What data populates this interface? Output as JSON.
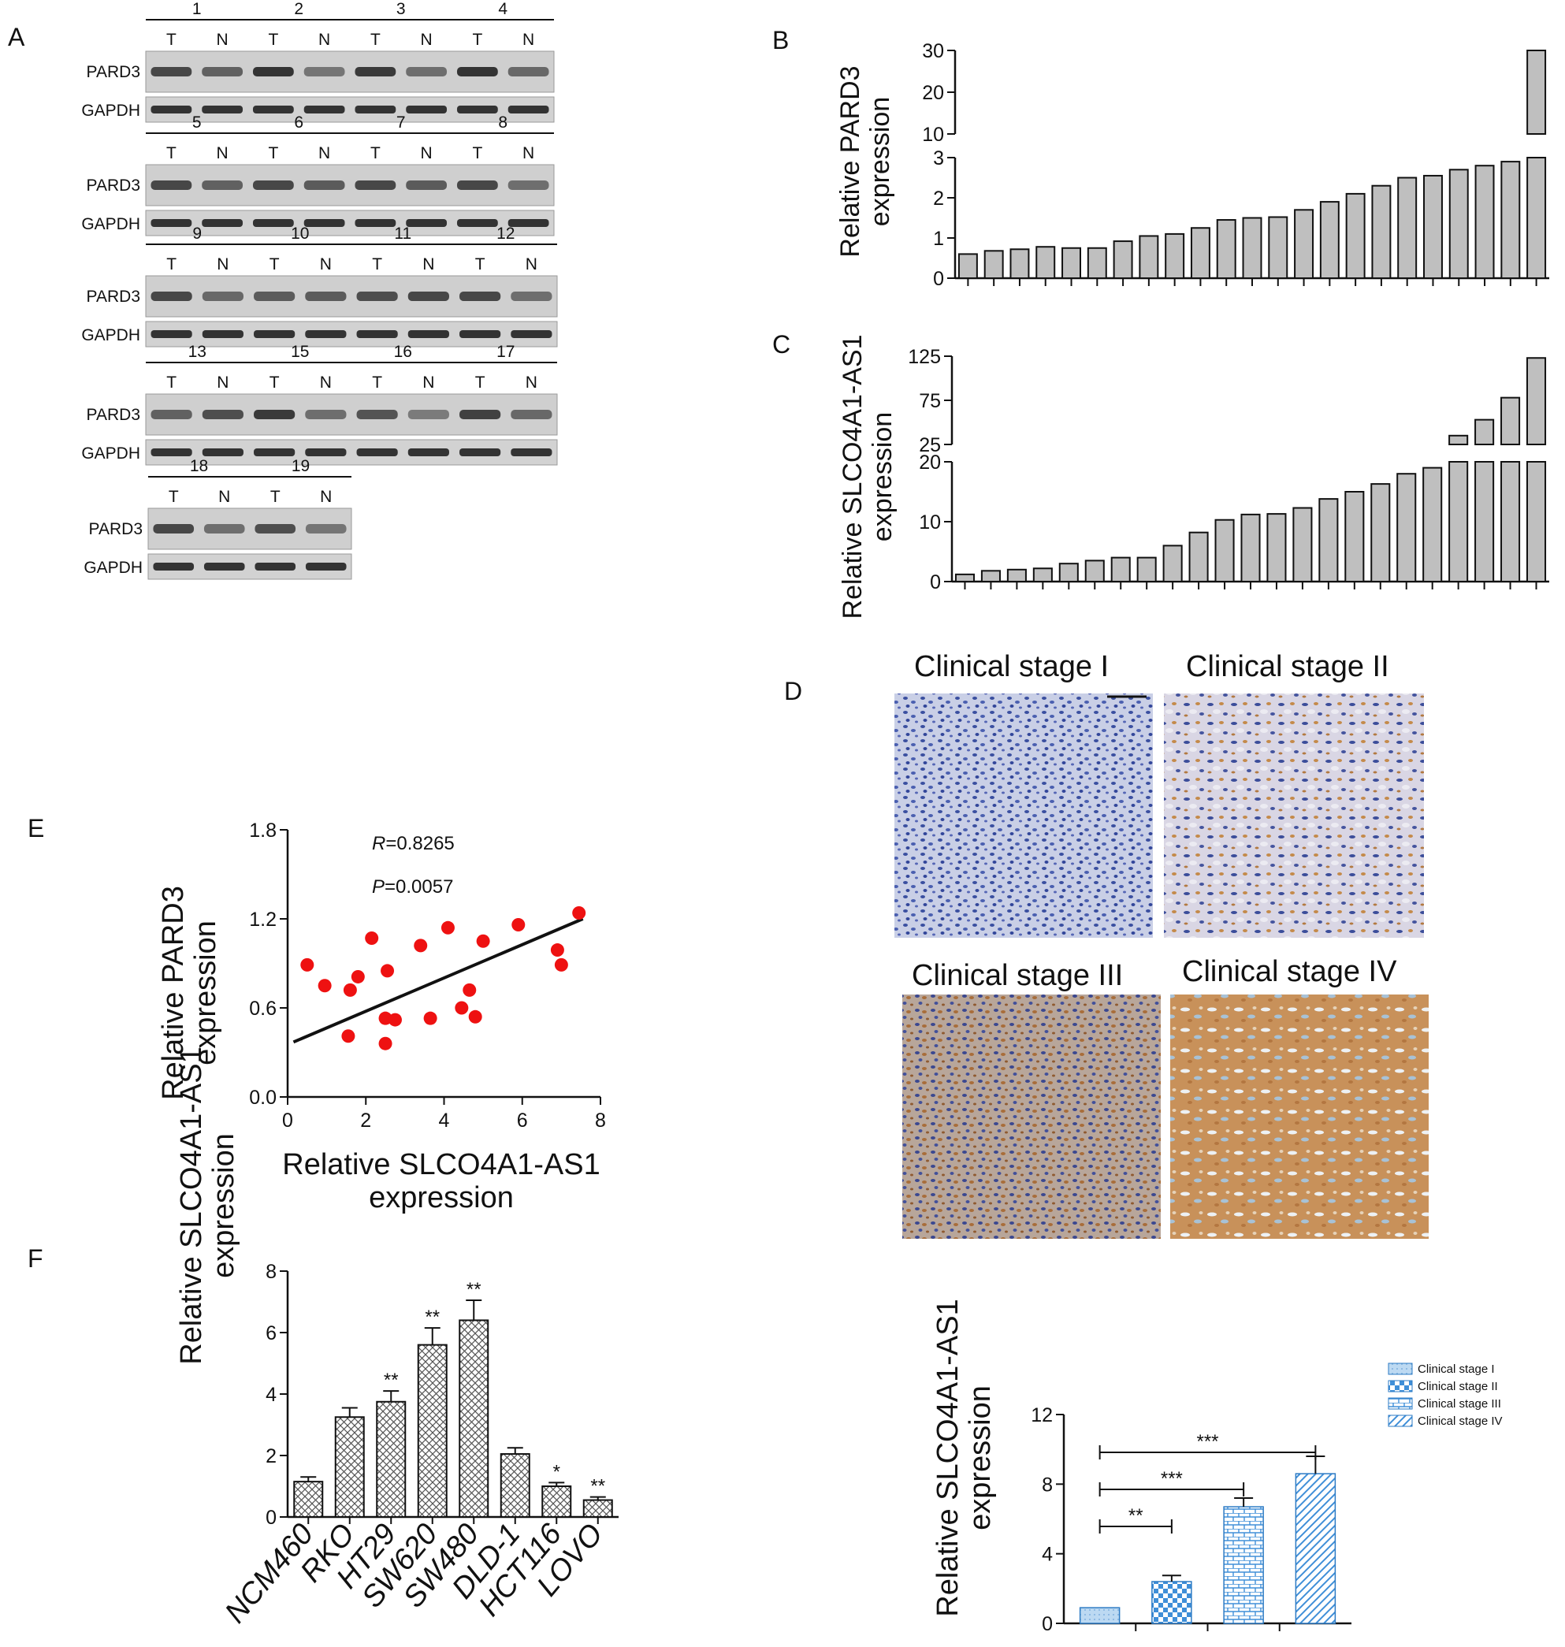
{
  "panel_labels": {
    "A": "A",
    "B": "B",
    "C": "C",
    "D": "D",
    "E": "E",
    "F": "F"
  },
  "blots": {
    "tumor_label": "T",
    "normal_label": "N",
    "protein_label": "PARD3",
    "control_label": "GAPDH",
    "rows": [
      {
        "samples": [
          "1",
          "2",
          "3",
          "4"
        ],
        "pard3_T": [
          0.8,
          0.95,
          0.9,
          0.95
        ],
        "pard3_N": [
          0.6,
          0.45,
          0.5,
          0.55
        ]
      },
      {
        "samples": [
          "5",
          "6",
          "7",
          "8"
        ],
        "pard3_T": [
          0.8,
          0.8,
          0.8,
          0.8
        ],
        "pard3_N": [
          0.6,
          0.65,
          0.65,
          0.5
        ]
      },
      {
        "samples": [
          "9",
          "10",
          "11",
          "12"
        ],
        "pard3_T": [
          0.8,
          0.65,
          0.75,
          0.8
        ],
        "pard3_N": [
          0.55,
          0.65,
          0.8,
          0.5
        ]
      },
      {
        "samples": [
          "13",
          "15",
          "16",
          "17"
        ],
        "pard3_T": [
          0.6,
          0.9,
          0.7,
          0.85
        ],
        "pard3_N": [
          0.75,
          0.5,
          0.4,
          0.55
        ]
      },
      {
        "samples": [
          "18",
          "19"
        ],
        "pard3_T": [
          0.8,
          0.75
        ],
        "pard3_N": [
          0.5,
          0.45
        ]
      }
    ]
  },
  "chart_data": [
    {
      "panel": "B",
      "type": "bar",
      "ylabel": "Relative PARD3",
      "ylabel2": "expression",
      "broken_axis": true,
      "lower_range": [
        0,
        3
      ],
      "lower_ticks": [
        "0",
        "1",
        "2",
        "3"
      ],
      "upper_range": [
        10,
        30
      ],
      "upper_ticks": [
        "10",
        "20",
        "30"
      ],
      "values": [
        0.6,
        0.68,
        0.72,
        0.78,
        0.75,
        0.75,
        0.92,
        1.05,
        1.1,
        1.25,
        1.45,
        1.5,
        1.52,
        1.7,
        1.9,
        2.1,
        2.3,
        2.5,
        2.55,
        2.7,
        2.8,
        2.9,
        30
      ]
    },
    {
      "panel": "C",
      "type": "bar",
      "ylabel": "Relative SLCO4A1-AS1",
      "ylabel2": "expression",
      "broken_axis": true,
      "lower_range": [
        0,
        20
      ],
      "lower_ticks": [
        "0",
        "10",
        "20"
      ],
      "upper_range": [
        25,
        125
      ],
      "upper_ticks": [
        "25",
        "75",
        "125"
      ],
      "values": [
        1.2,
        1.8,
        2,
        2.2,
        3,
        3.5,
        4,
        4,
        6,
        8.2,
        10.3,
        11.2,
        11.3,
        12.3,
        13.8,
        15,
        16.3,
        18,
        19,
        35,
        53,
        78,
        123
      ]
    },
    {
      "panel": "D",
      "type": "bar",
      "ylabel": "Relative SLCO4A1-AS1",
      "ylabel2": "expression",
      "categories": [
        "Clinical stage I",
        "Clinical stage II",
        "Clinical stage III",
        "Clinical stage IV"
      ],
      "values": [
        0.9,
        2.4,
        6.7,
        8.6
      ],
      "errors": [
        0,
        0.35,
        0.5,
        1.0
      ],
      "ylim": [
        0,
        12
      ],
      "yticks": [
        "0",
        "4",
        "8",
        "12"
      ],
      "significance": [
        {
          "from": 0,
          "to": 1,
          "label": "**"
        },
        {
          "from": 0,
          "to": 2,
          "label": "***"
        },
        {
          "from": 0,
          "to": 3,
          "label": "***"
        }
      ]
    },
    {
      "panel": "E",
      "type": "scatter",
      "xlabel": "Relative SLCO4A1-AS1",
      "xlabel2": "expression",
      "ylabel": "Relative PARD3",
      "ylabel2": "expression",
      "xlim": [
        0,
        8
      ],
      "ylim": [
        0,
        1.8
      ],
      "xticks": [
        "0",
        "2",
        "4",
        "6",
        "8"
      ],
      "yticks": [
        "0.0",
        "0.6",
        "1.2",
        "1.8"
      ],
      "annotation_r_symbol": "R",
      "annotation_r_value": "=0.8265",
      "annotation_p_symbol": "P",
      "annotation_p_value": "=0.0057",
      "fit": [
        [
          0.15,
          0.37
        ],
        [
          7.55,
          1.2
        ]
      ],
      "points": [
        [
          0.5,
          0.89
        ],
        [
          0.95,
          0.75
        ],
        [
          1.6,
          0.72
        ],
        [
          1.8,
          0.81
        ],
        [
          2.15,
          1.07
        ],
        [
          2.55,
          0.85
        ],
        [
          3.4,
          1.02
        ],
        [
          4.1,
          1.14
        ],
        [
          5,
          1.05
        ],
        [
          5.9,
          1.16
        ],
        [
          6.9,
          0.99
        ],
        [
          7,
          0.89
        ],
        [
          7.45,
          1.24
        ],
        [
          1.55,
          0.41
        ],
        [
          2.5,
          0.36
        ],
        [
          2.5,
          0.53
        ],
        [
          2.75,
          0.52
        ],
        [
          3.65,
          0.53
        ],
        [
          4.45,
          0.6
        ],
        [
          4.65,
          0.72
        ],
        [
          4.8,
          0.54
        ]
      ]
    },
    {
      "panel": "F",
      "type": "bar",
      "ylabel": "Relative SLCO4A1-AS1",
      "ylabel2": "expression",
      "categories": [
        "NCM460",
        "RKO",
        "HT29",
        "SW620",
        "SW480",
        "DLD-1",
        "HCT116",
        "LOVO"
      ],
      "values": [
        1.15,
        3.25,
        3.75,
        5.6,
        6.4,
        2.05,
        1.0,
        0.55
      ],
      "errors": [
        0.15,
        0.3,
        0.35,
        0.55,
        0.65,
        0.2,
        0.12,
        0.1
      ],
      "stars": [
        "",
        "",
        "**",
        "**",
        "**",
        "",
        "*",
        "**"
      ],
      "ylim": [
        0,
        8
      ],
      "yticks": [
        "0",
        "2",
        "4",
        "6",
        "8"
      ]
    }
  ],
  "ihc": {
    "titles": [
      "Clinical stage I",
      "Clinical stage II",
      "Clinical stage III",
      "Clinical stage IV"
    ]
  }
}
